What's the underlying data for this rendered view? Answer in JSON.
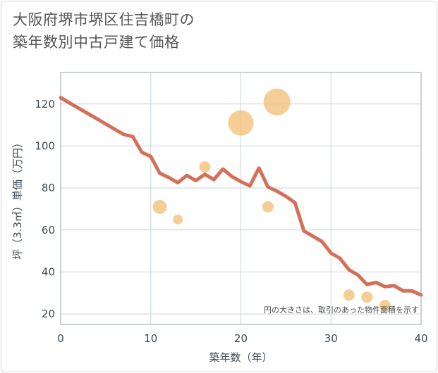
{
  "title_line1": "大阪府堺市堺区住吉橋町の",
  "title_line2": "築年数別中古戸建て価格",
  "chart_data": {
    "type": "line+bubble",
    "xlabel": "築年数（年）",
    "ylabel": "坪（3.3㎡）単価（万円）",
    "xlim": [
      0,
      40
    ],
    "ylim": [
      15,
      135
    ],
    "xticks": [
      0,
      10,
      20,
      30,
      40
    ],
    "yticks": [
      20,
      40,
      60,
      80,
      100,
      120
    ],
    "grid": true,
    "note": "円の大きさは、取引のあった物件面積を示す",
    "line_color": "#d4705a",
    "bubble_color": "#f2c27a",
    "line": {
      "x": [
        0,
        1,
        2,
        3,
        4,
        5,
        6,
        7,
        8,
        9,
        10,
        11,
        12,
        13,
        14,
        15,
        16,
        17,
        18,
        19,
        20,
        21,
        22,
        23,
        24,
        25,
        26,
        27,
        28,
        29,
        30,
        31,
        32,
        33,
        34,
        35,
        36,
        37,
        38,
        39,
        40
      ],
      "y": [
        123,
        120.5,
        118,
        115.5,
        113,
        110.5,
        108,
        105.5,
        104.5,
        97,
        95,
        87,
        85,
        82.5,
        86,
        83.5,
        86.5,
        84,
        89,
        85.5,
        83,
        81,
        89.5,
        80.5,
        78.5,
        76,
        73,
        59.5,
        57,
        54.5,
        49,
        46.5,
        41,
        38.5,
        34,
        35,
        33,
        33.5,
        31,
        31,
        29
      ]
    },
    "bubbles": [
      {
        "x": 11,
        "y": 71,
        "size": 3
      },
      {
        "x": 13,
        "y": 65,
        "size": 1.5
      },
      {
        "x": 16,
        "y": 90,
        "size": 2
      },
      {
        "x": 20,
        "y": 111,
        "size": 7
      },
      {
        "x": 23,
        "y": 71,
        "size": 2
      },
      {
        "x": 24,
        "y": 121,
        "size": 7.5
      },
      {
        "x": 32,
        "y": 29,
        "size": 2
      },
      {
        "x": 34,
        "y": 28,
        "size": 2
      },
      {
        "x": 36,
        "y": 24,
        "size": 2
      }
    ]
  }
}
